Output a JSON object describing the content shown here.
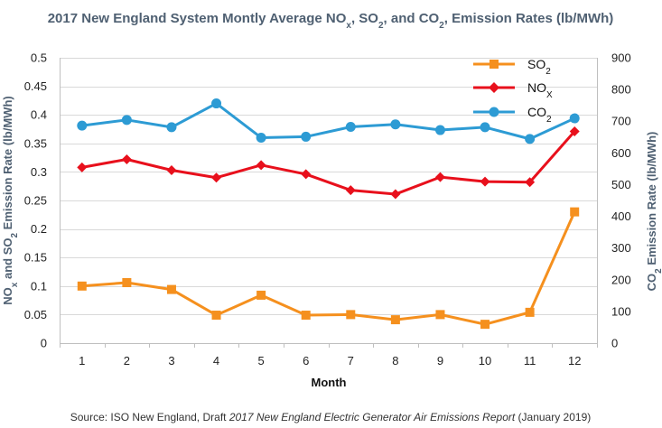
{
  "chart_data": {
    "type": "line",
    "title": {
      "prefix": "2017 New England System Montly Average NO",
      "nox_sub": "x",
      "sep1": ", SO",
      "so2_sub": "2",
      "sep2": ", and CO",
      "co2_sub": "2",
      "suffix": ", Emission Rates (lb/MWh)"
    },
    "xlabel": "Month",
    "ylabel_left": {
      "prefix": "NO",
      "nox_sub": "x",
      "mid": " and SO",
      "so2_sub": "2",
      "suffix": " Emission Rate (lb/MWh)"
    },
    "ylabel_right": {
      "prefix": "CO",
      "co2_sub": "2",
      "suffix": " Emission Rate (lb/MWh)"
    },
    "categories": [
      "1",
      "2",
      "3",
      "4",
      "5",
      "6",
      "7",
      "8",
      "9",
      "10",
      "11",
      "12"
    ],
    "x": [
      1,
      2,
      3,
      4,
      5,
      6,
      7,
      8,
      9,
      10,
      11,
      12
    ],
    "ylim_left": [
      0,
      0.5
    ],
    "ylim_right": [
      0,
      900
    ],
    "left_ticks": [
      "0",
      "0.05",
      "0.1",
      "0.15",
      "0.2",
      "0.25",
      "0.3",
      "0.35",
      "0.4",
      "0.45",
      "0.5"
    ],
    "right_ticks": [
      "0",
      "100",
      "200",
      "300",
      "400",
      "500",
      "600",
      "700",
      "800",
      "900"
    ],
    "grid": true,
    "legend_position": "top-right",
    "series": [
      {
        "key": "so2",
        "name_main": "SO",
        "name_sub": "2",
        "axis": "left",
        "color": "#f5901e",
        "marker": "square",
        "values": [
          0.1,
          0.106,
          0.094,
          0.049,
          0.084,
          0.049,
          0.05,
          0.041,
          0.05,
          0.033,
          0.054,
          0.23
        ]
      },
      {
        "key": "nox",
        "name_main": "NO",
        "name_sub": "X",
        "axis": "left",
        "color": "#e8101c",
        "marker": "diamond",
        "values": [
          0.308,
          0.322,
          0.303,
          0.29,
          0.312,
          0.296,
          0.268,
          0.261,
          0.291,
          0.283,
          0.282,
          0.371
        ]
      },
      {
        "key": "co2",
        "name_main": "CO",
        "name_sub": "2",
        "axis": "right",
        "color": "#2d9bd4",
        "marker": "circle",
        "values": [
          686,
          704,
          681,
          756,
          648,
          651,
          682,
          690,
          672,
          681,
          644,
          709
        ]
      }
    ]
  },
  "source": {
    "prefix": "Source: ISO New England, Draft ",
    "report": "2017 New England Electric Generator Air Emissions Report",
    "suffix": " (January 2019)"
  },
  "colors": {
    "title": "#4f6072",
    "grid": "#d9d9d9"
  }
}
